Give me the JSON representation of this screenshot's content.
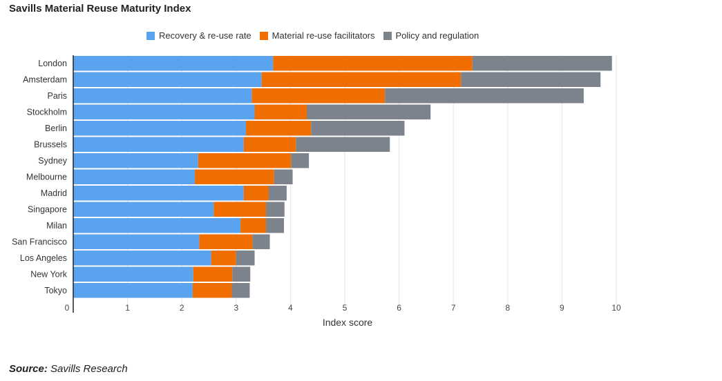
{
  "title": "Savills Material Reuse Maturity Index",
  "source": {
    "label": "Source:",
    "text": "Savills Research"
  },
  "chart_data": {
    "type": "bar",
    "orientation": "horizontal",
    "stacked": true,
    "title": "Savills Material Reuse Maturity Index",
    "xlabel": "Index score",
    "ylabel": "",
    "xlim": [
      0,
      10
    ],
    "xticks": [
      "0",
      "1",
      "2",
      "3",
      "4",
      "5",
      "6",
      "7",
      "8",
      "9",
      "10"
    ],
    "grid": "vertical",
    "legend_position": "top",
    "categories": [
      "London",
      "Amsterdam",
      "Paris",
      "Stockholm",
      "Berlin",
      "Brussels",
      "Sydney",
      "Melbourne",
      "Madrid",
      "Singapore",
      "Milan",
      "San Francisco",
      "Los Angeles",
      "New York",
      "Tokyo"
    ],
    "series": [
      {
        "name": "Recovery & re-use rate",
        "color": "#5aa3ee",
        "values": [
          3.68,
          3.47,
          3.29,
          3.34,
          3.18,
          3.14,
          2.3,
          2.24,
          3.14,
          2.59,
          3.08,
          2.32,
          2.54,
          2.21,
          2.2
        ]
      },
      {
        "name": "Material re-use facilitators",
        "color": "#f06d00",
        "values": [
          3.67,
          3.67,
          2.45,
          0.96,
          1.2,
          0.96,
          1.71,
          1.46,
          0.46,
          0.96,
          0.47,
          0.98,
          0.46,
          0.72,
          0.72
        ]
      },
      {
        "name": "Policy and regulation",
        "color": "#7c838d",
        "values": [
          2.57,
          2.57,
          3.66,
          2.28,
          1.72,
          1.73,
          0.33,
          0.34,
          0.33,
          0.34,
          0.33,
          0.32,
          0.34,
          0.33,
          0.33
        ]
      }
    ]
  }
}
